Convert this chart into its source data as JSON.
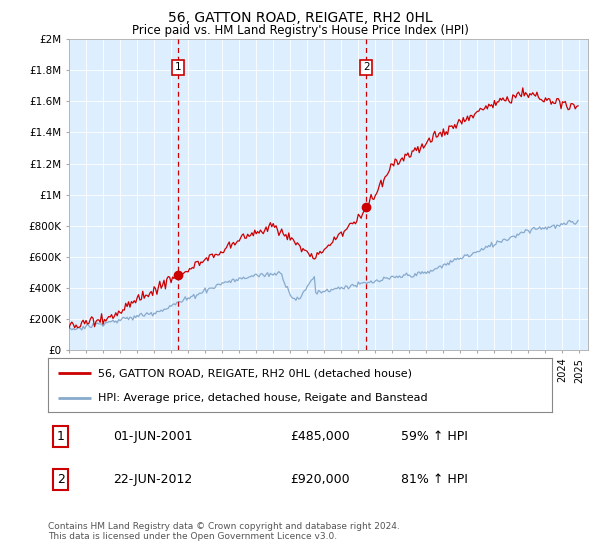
{
  "title": "56, GATTON ROAD, REIGATE, RH2 0HL",
  "subtitle": "Price paid vs. HM Land Registry's House Price Index (HPI)",
  "ylim": [
    0,
    2000000
  ],
  "yticks": [
    0,
    200000,
    400000,
    600000,
    800000,
    1000000,
    1200000,
    1400000,
    1600000,
    1800000,
    2000000
  ],
  "ytick_labels": [
    "£0",
    "£200K",
    "£400K",
    "£600K",
    "£800K",
    "£1M",
    "£1.2M",
    "£1.4M",
    "£1.6M",
    "£1.8M",
    "£2M"
  ],
  "plot_bg": "#ddeeff",
  "red_line_color": "#cc0000",
  "blue_line_color": "#88aacc",
  "dashed_color": "#cc0000",
  "legend_label_red": "56, GATTON ROAD, REIGATE, RH2 0HL (detached house)",
  "legend_label_blue": "HPI: Average price, detached house, Reigate and Banstead",
  "transaction1_label": "1",
  "transaction1_date": "01-JUN-2001",
  "transaction1_price": "£485,000",
  "transaction1_hpi": "59% ↑ HPI",
  "transaction1_x": 2001.42,
  "transaction1_y": 485000,
  "transaction2_label": "2",
  "transaction2_date": "22-JUN-2012",
  "transaction2_price": "£920,000",
  "transaction2_hpi": "81% ↑ HPI",
  "transaction2_x": 2012.47,
  "transaction2_y": 920000,
  "footer": "Contains HM Land Registry data © Crown copyright and database right 2024.\nThis data is licensed under the Open Government Licence v3.0.",
  "xmin": 1995,
  "xmax": 2025.5
}
